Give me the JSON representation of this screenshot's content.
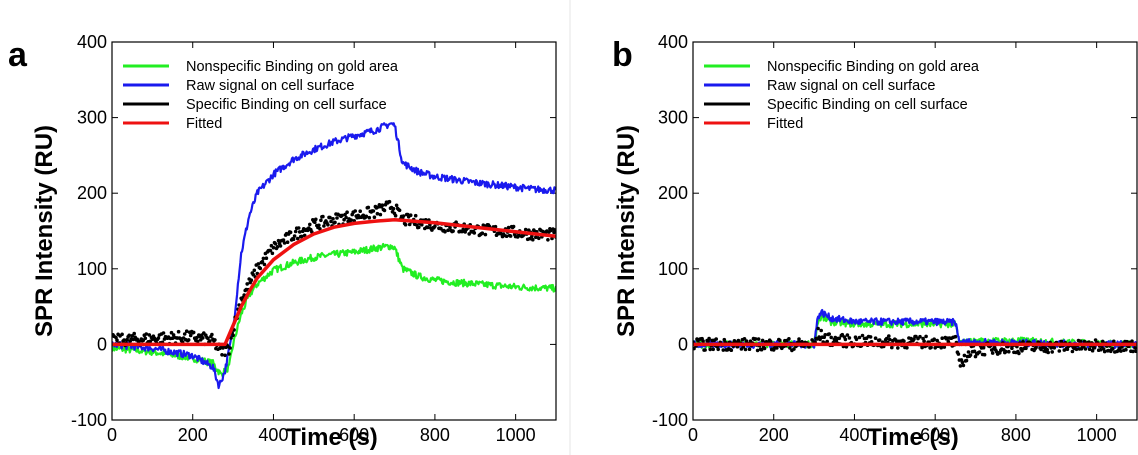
{
  "chart_data": [
    {
      "panel": "a",
      "type": "line",
      "xlabel": "Time (s)",
      "ylabel": "SPR Intensity (RU)",
      "xlim": [
        0,
        1100
      ],
      "ylim": [
        -100,
        400
      ],
      "xticks": [
        0,
        200,
        400,
        600,
        800,
        1000
      ],
      "yticks": [
        -100,
        0,
        100,
        200,
        300,
        400
      ],
      "grid": false,
      "legend_position": "top-left",
      "series": [
        {
          "name": "Nonspecific Binding on gold area",
          "color": "#22ee22",
          "style": "noisy-line",
          "x": [
            0,
            100,
            200,
            250,
            270,
            290,
            300,
            320,
            340,
            360,
            400,
            450,
            500,
            550,
            600,
            650,
            690,
            700,
            720,
            760,
            800,
            850,
            900,
            950,
            1000,
            1050,
            1100
          ],
          "y": [
            -5,
            -10,
            -18,
            -25,
            -40,
            -30,
            0,
            40,
            65,
            80,
            98,
            108,
            115,
            119,
            122,
            127,
            130,
            128,
            100,
            90,
            85,
            82,
            80,
            78,
            76,
            75,
            74
          ]
        },
        {
          "name": "Raw signal on cell surface",
          "color": "#1a1aee",
          "style": "noisy-line",
          "x": [
            0,
            100,
            200,
            250,
            265,
            280,
            300,
            320,
            340,
            360,
            400,
            450,
            500,
            550,
            600,
            650,
            690,
            700,
            720,
            760,
            800,
            850,
            900,
            950,
            1000,
            1050,
            1100
          ],
          "y": [
            0,
            -5,
            -15,
            -30,
            -55,
            -35,
            20,
            120,
            170,
            200,
            225,
            245,
            258,
            268,
            276,
            283,
            292,
            290,
            240,
            228,
            222,
            218,
            214,
            211,
            208,
            205,
            204
          ]
        },
        {
          "name": "Specific Binding on cell surface",
          "color": "#000000",
          "style": "dots",
          "x": [
            0,
            100,
            200,
            250,
            270,
            290,
            300,
            320,
            340,
            360,
            400,
            450,
            500,
            550,
            600,
            650,
            690,
            700,
            720,
            760,
            800,
            850,
            900,
            950,
            1000,
            1050,
            1100
          ],
          "y": [
            5,
            8,
            10,
            5,
            -10,
            -5,
            20,
            60,
            80,
            100,
            128,
            145,
            158,
            165,
            170,
            175,
            183,
            180,
            165,
            162,
            158,
            155,
            152,
            150,
            148,
            146,
            145
          ]
        },
        {
          "name": "Fitted",
          "color": "#ee1111",
          "style": "line",
          "x": [
            0,
            100,
            200,
            280,
            300,
            320,
            340,
            360,
            400,
            450,
            500,
            550,
            600,
            650,
            700,
            750,
            800,
            850,
            900,
            950,
            1000,
            1050,
            1100
          ],
          "y": [
            0,
            0,
            0,
            0,
            25,
            50,
            70,
            88,
            112,
            132,
            146,
            155,
            160,
            163,
            165,
            163,
            161,
            158,
            155,
            152,
            149,
            146,
            143
          ]
        }
      ]
    },
    {
      "panel": "b",
      "type": "line",
      "xlabel": "Time (s)",
      "ylabel": "SPR Intensity (RU)",
      "xlim": [
        0,
        1100
      ],
      "ylim": [
        -100,
        400
      ],
      "xticks": [
        0,
        200,
        400,
        600,
        800,
        1000
      ],
      "yticks": [
        -100,
        0,
        100,
        200,
        300,
        400
      ],
      "grid": false,
      "legend_position": "top-left",
      "series": [
        {
          "name": "Nonspecific Binding on gold area",
          "color": "#22ee22",
          "style": "noisy-line",
          "x": [
            0,
            300,
            310,
            320,
            340,
            400,
            500,
            600,
            650,
            660,
            680,
            700,
            800,
            900,
            1000,
            1100
          ],
          "y": [
            0,
            0,
            32,
            36,
            30,
            27,
            27,
            27,
            27,
            2,
            3,
            4,
            5,
            3,
            1,
            0
          ]
        },
        {
          "name": "Raw signal on cell surface",
          "color": "#1a1aee",
          "style": "noisy-line",
          "x": [
            0,
            300,
            310,
            320,
            340,
            400,
            500,
            600,
            650,
            660,
            680,
            700,
            800,
            900,
            1000,
            1100
          ],
          "y": [
            0,
            0,
            38,
            42,
            35,
            30,
            30,
            30,
            29,
            2,
            3,
            3,
            2,
            1,
            0,
            0
          ]
        },
        {
          "name": "Specific Binding on cell surface",
          "color": "#000000",
          "style": "dots",
          "x": [
            0,
            300,
            310,
            320,
            340,
            400,
            500,
            600,
            650,
            660,
            670,
            690,
            720,
            800,
            900,
            1000,
            1100
          ],
          "y": [
            0,
            0,
            14,
            10,
            6,
            4,
            3,
            3,
            3,
            -28,
            -20,
            -10,
            -6,
            -4,
            -3,
            -2,
            -2
          ]
        },
        {
          "name": "Fitted",
          "color": "#ee1111",
          "style": "line",
          "x": [
            0,
            1100
          ],
          "y": [
            0,
            0
          ]
        }
      ]
    }
  ]
}
